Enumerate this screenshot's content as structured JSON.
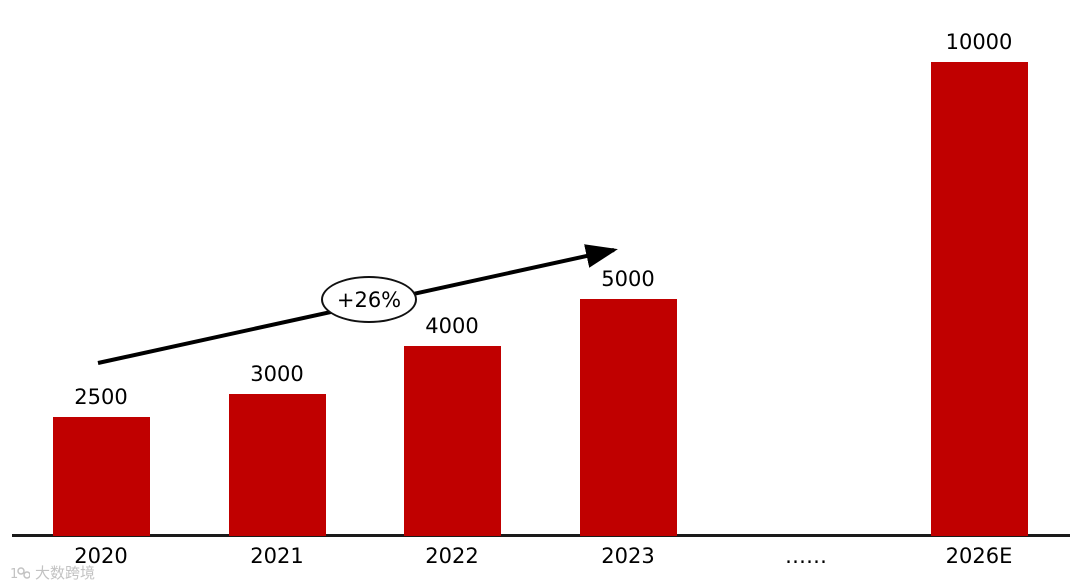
{
  "chart_data": {
    "type": "bar",
    "title": "",
    "xlabel": "",
    "ylabel": "",
    "categories": [
      "2020",
      "2021",
      "2022",
      "2023",
      "……",
      "2026E"
    ],
    "values": [
      2500,
      3000,
      4000,
      5000,
      null,
      10000
    ],
    "value_labels": [
      "2500",
      "3000",
      "4000",
      "5000",
      "",
      "10000"
    ],
    "annotation": "+26%",
    "ylim": [
      0,
      10000
    ],
    "bar_color": "#C00000",
    "axis_line_color": "#1a1a1a",
    "grid": false,
    "legend": false,
    "arrow": {
      "description": "trend-arrow from above 2020 bar to above 2023 bar",
      "color": "#000000"
    }
  },
  "watermark": {
    "text": "大数跨境"
  }
}
